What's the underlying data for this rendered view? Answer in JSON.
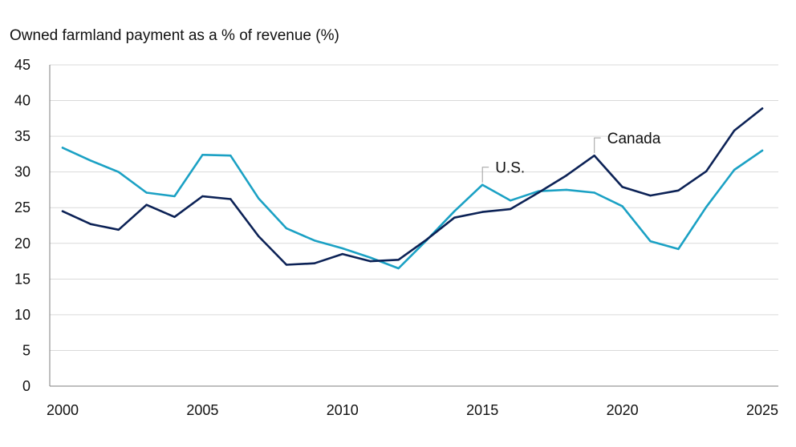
{
  "chart_data": {
    "type": "line",
    "title": "",
    "ylabel": "Owned farmland payment  as a % of revenue (%)",
    "xlabel": "",
    "ylim": [
      0,
      45
    ],
    "y_ticks": [
      "0",
      "5",
      "10",
      "15",
      "20",
      "25",
      "30",
      "35",
      "40",
      "45"
    ],
    "x_range": [
      2000,
      2025
    ],
    "x_ticks": [
      "2000",
      "2005",
      "2010",
      "2015",
      "2020",
      "2025"
    ],
    "grid": "horizontal",
    "legend": "none",
    "x": [
      2000,
      2001,
      2002,
      2003,
      2004,
      2005,
      2006,
      2007,
      2008,
      2009,
      2010,
      2011,
      2012,
      2013,
      2014,
      2015,
      2016,
      2017,
      2018,
      2019,
      2020,
      2021,
      2022,
      2023,
      2024,
      2025
    ],
    "series": [
      {
        "name": "U.S.",
        "color": "#1ba1c4",
        "values": [
          33.4,
          31.6,
          30.0,
          27.1,
          26.6,
          32.4,
          32.3,
          26.3,
          22.1,
          20.4,
          19.3,
          18.0,
          16.5,
          20.4,
          24.5,
          28.2,
          26.0,
          27.3,
          27.5,
          27.1,
          25.2,
          20.3,
          19.2,
          25.1,
          30.3,
          33.0
        ],
        "annotation_year": 2015
      },
      {
        "name": "Canada",
        "color": "#0c2256",
        "values": [
          24.5,
          22.7,
          21.9,
          25.4,
          23.7,
          26.6,
          26.2,
          21.0,
          17.0,
          17.2,
          18.5,
          17.5,
          17.7,
          20.5,
          23.6,
          24.4,
          24.8,
          27.1,
          29.5,
          32.3,
          27.9,
          26.7,
          27.4,
          30.1,
          35.8,
          38.9
        ],
        "annotation_year": 2019
      }
    ]
  }
}
